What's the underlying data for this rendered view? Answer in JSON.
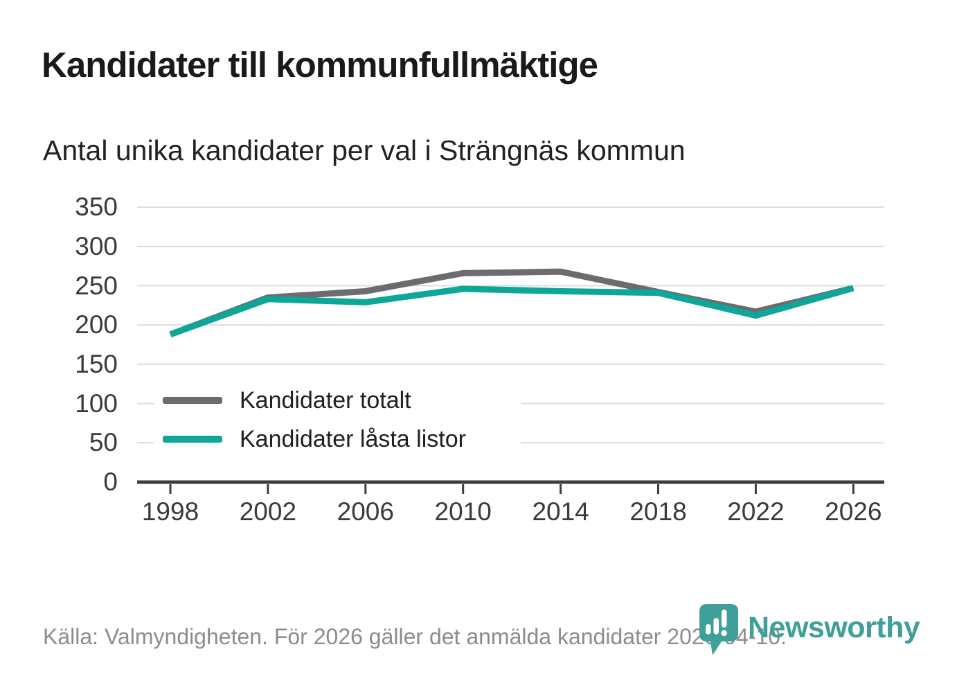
{
  "chart_data": {
    "type": "line",
    "title": "Kandidater till kommunfullmäktige",
    "subtitle": "Antal unika kandidater per val i Strängnäs kommun",
    "x": [
      "1998",
      "2002",
      "2006",
      "2010",
      "2014",
      "2018",
      "2022",
      "2026"
    ],
    "series": [
      {
        "name": "Kandidater totalt",
        "color": "#6e6a6e",
        "values": [
          188,
          235,
          243,
          266,
          268,
          242,
          217,
          247
        ]
      },
      {
        "name": "Kandidater låsta listor",
        "color": "#0da698",
        "values": [
          188,
          233,
          229,
          246,
          243,
          241,
          212,
          247
        ]
      }
    ],
    "ylim": [
      0,
      350
    ],
    "yticks": [
      0,
      50,
      100,
      150,
      200,
      250,
      300,
      350
    ],
    "grid": true,
    "legend_position": "inside-left-bottom"
  },
  "footer": {
    "source": "Källa: Valmyndigheten. För 2026 gäller det anmälda kandidater 2026-04-10.",
    "brand": "Newsworthy"
  },
  "colors": {
    "grid": "#dcdcdc",
    "axis": "#3d3d3d",
    "title_text": "#1a1a1a",
    "axis_text": "#3a3a3a",
    "muted_text": "#8c8c8c",
    "brand_teal": "#3f9f99"
  }
}
